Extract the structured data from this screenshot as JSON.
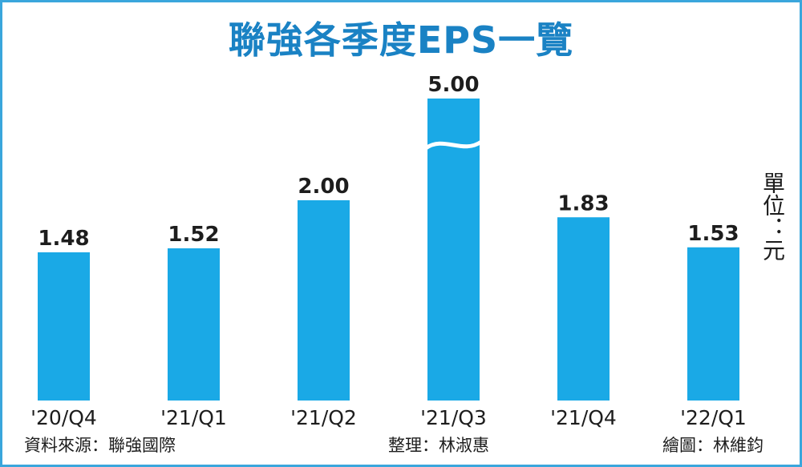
{
  "title": "聯強各季度EPS一覽",
  "unit": "單位：元",
  "footer": {
    "source": "資料來源：聯強國際",
    "editor": "整理：林淑惠",
    "drawer": "繪圖：林維鈞"
  },
  "colors": {
    "bar": "#1aa9e6",
    "title": "#1a82c4",
    "frame": "#3aa6dc"
  },
  "chart_data": {
    "type": "bar",
    "categories": [
      "'20/Q4",
      "'21/Q1",
      "'21/Q2",
      "'21/Q3",
      "'21/Q4",
      "'22/Q1"
    ],
    "values": [
      1.48,
      1.52,
      2.0,
      5.0,
      1.83,
      1.53
    ],
    "value_labels": [
      "1.48",
      "1.52",
      "2.00",
      "5.00",
      "1.83",
      "1.53"
    ],
    "axis_break_at": 5.0,
    "grid": false,
    "legend": "none"
  }
}
